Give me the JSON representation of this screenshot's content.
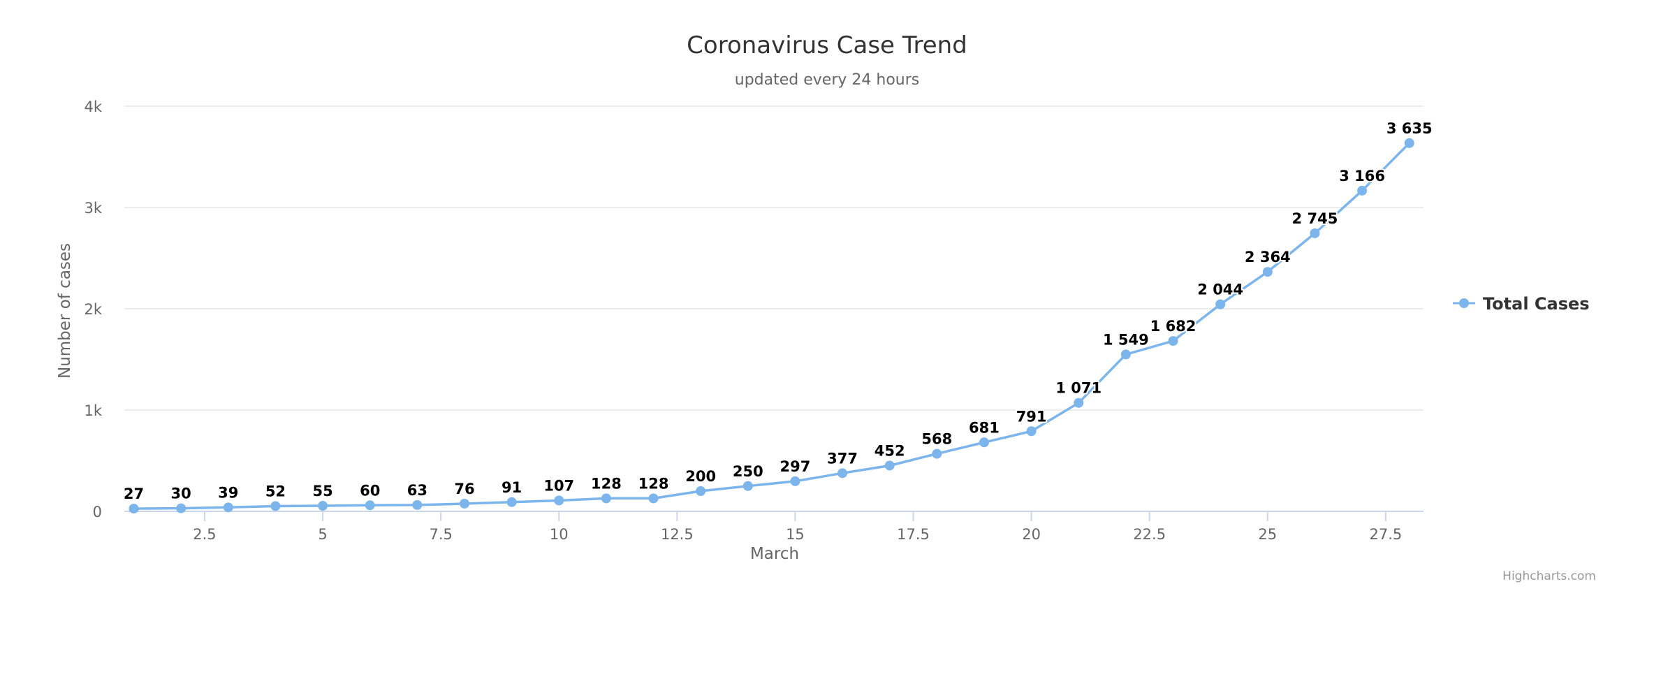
{
  "chart_data": {
    "type": "line",
    "title": "Coronavirus Case Trend",
    "subtitle": "updated every 24 hours",
    "xlabel": "March",
    "ylabel": "Number of cases",
    "x_ticks": [
      "2.5",
      "5",
      "7.5",
      "10",
      "12.5",
      "15",
      "17.5",
      "20",
      "22.5",
      "25",
      "27.5"
    ],
    "y_ticks": [
      "0",
      "1k",
      "2k",
      "3k",
      "4k"
    ],
    "xlim": [
      0.8,
      28.3
    ],
    "ylim": [
      0,
      4000
    ],
    "grid": true,
    "legend_position": "right",
    "credits": "Highcharts.com",
    "series": [
      {
        "name": "Total Cases",
        "color": "#7cb5ec",
        "x": [
          1,
          2,
          3,
          4,
          5,
          6,
          7,
          8,
          9,
          10,
          11,
          12,
          13,
          14,
          15,
          16,
          17,
          18,
          19,
          20,
          21,
          22,
          23,
          24,
          25,
          26,
          27,
          28
        ],
        "values": [
          27,
          30,
          39,
          52,
          55,
          60,
          63,
          76,
          91,
          107,
          128,
          128,
          200,
          250,
          297,
          377,
          452,
          568,
          681,
          791,
          1071,
          1549,
          1682,
          2044,
          2364,
          2745,
          3166,
          3635
        ],
        "labels": [
          "27",
          "30",
          "39",
          "52",
          "55",
          "60",
          "63",
          "76",
          "91",
          "107",
          "128",
          "128",
          "200",
          "250",
          "297",
          "377",
          "452",
          "568",
          "681",
          "791",
          "1 071",
          "1 549",
          "1 682",
          "2 044",
          "2 364",
          "2 745",
          "3 166",
          "3 635"
        ]
      }
    ]
  }
}
